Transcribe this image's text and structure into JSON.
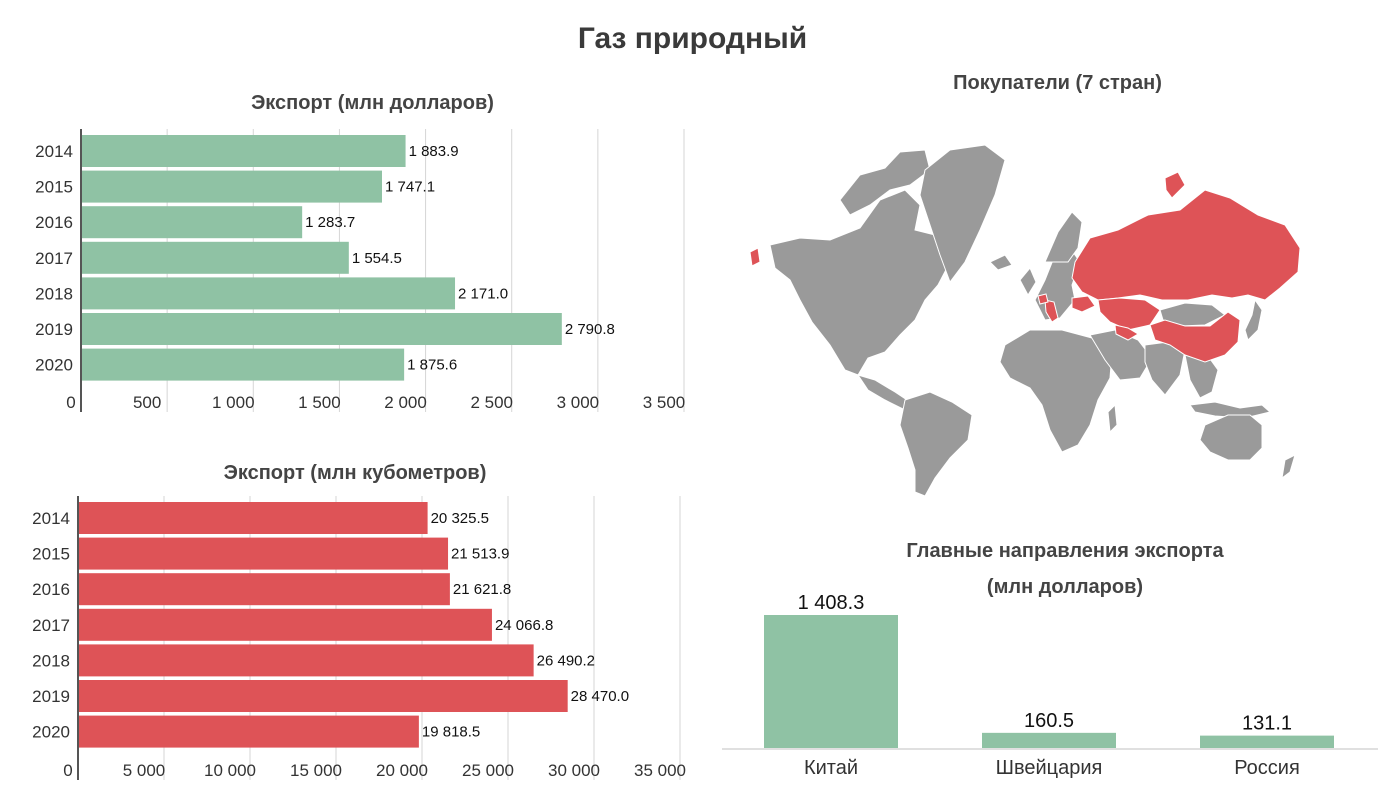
{
  "title": "Газ природный",
  "colors": {
    "green": "#8fc2a4",
    "red": "#de5357",
    "map_gray": "#9a9a9a",
    "grid": "#d6d6d6"
  },
  "map": {
    "title": "Покупатели (7 стран)",
    "highlighted_regions": [
      "russia",
      "china",
      "kazakhstan",
      "uzbekistan",
      "switzerland",
      "italy",
      "ukraine",
      "alaska-west"
    ]
  },
  "chart_data": [
    {
      "type": "bar",
      "orientation": "horizontal",
      "title": "Экспорт (млн долларов)",
      "categories": [
        "2014",
        "2015",
        "2016",
        "2017",
        "2018",
        "2019",
        "2020"
      ],
      "values": [
        1883.9,
        1747.1,
        1283.7,
        1554.5,
        2171.0,
        2790.8,
        1875.6
      ],
      "value_labels": [
        "1 883.9",
        "1 747.1",
        "1 283.7",
        "1 554.5",
        "2 171.0",
        "2 790.8",
        "1 875.6"
      ],
      "xlim": [
        0,
        3500
      ],
      "ticks": [
        0,
        500,
        1000,
        1500,
        2000,
        2500,
        3000,
        3500
      ],
      "tick_labels": [
        "0",
        "500",
        "1 000",
        "1 500",
        "2 000",
        "2 500",
        "3 000",
        "3 500"
      ],
      "color": "#8fc2a4",
      "grid": true
    },
    {
      "type": "bar",
      "orientation": "horizontal",
      "title": "Экспорт (млн кубометров)",
      "categories": [
        "2014",
        "2015",
        "2016",
        "2017",
        "2018",
        "2019",
        "2020"
      ],
      "values": [
        20325.5,
        21513.9,
        21621.8,
        24066.8,
        26490.2,
        28470.0,
        19818.5
      ],
      "value_labels": [
        "20 325.5",
        "21 513.9",
        "21 621.8",
        "24 066.8",
        "26 490.2",
        "28 470.0",
        "19 818.5"
      ],
      "xlim": [
        0,
        35000
      ],
      "ticks": [
        0,
        5000,
        10000,
        15000,
        20000,
        25000,
        30000,
        35000
      ],
      "tick_labels": [
        "0",
        "5 000",
        "10 000",
        "15 000",
        "20 000",
        "25 000",
        "30 000",
        "35 000"
      ],
      "color": "#de5357",
      "grid": true
    },
    {
      "type": "bar",
      "orientation": "vertical",
      "title_line1": "Главные направления экспорта",
      "title_line2": "(млн долларов)",
      "categories": [
        "Китай",
        "Швейцария",
        "Россия"
      ],
      "values": [
        1408.3,
        160.5,
        131.1
      ],
      "value_labels": [
        "1 408.3",
        "160.5",
        "131.1"
      ],
      "color": "#8fc2a4"
    }
  ]
}
